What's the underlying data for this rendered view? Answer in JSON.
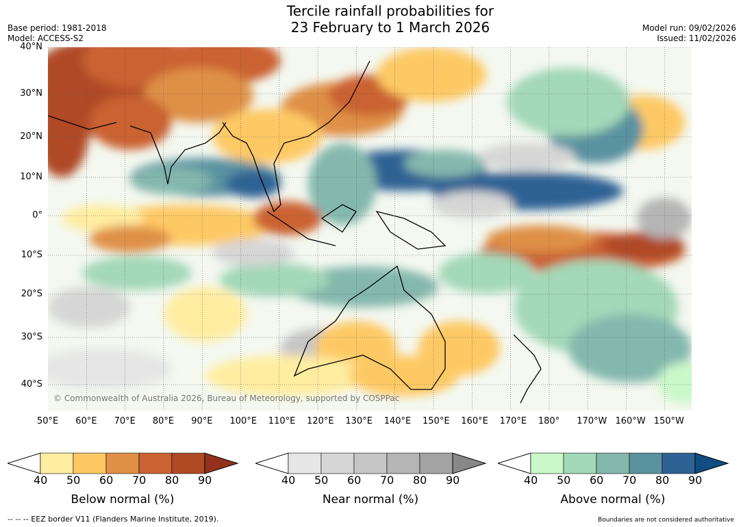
{
  "header": {
    "title_line1": "Tercile rainfall probabilities for",
    "title_line2": "23 February to 1 March 2026",
    "base_period": "Base period: 1981-2018",
    "model": "Model: ACCESS-S2",
    "model_run": "Model run: 09/02/2026",
    "issued": "Issued: 11/02/2026"
  },
  "map": {
    "lat_labels": [
      "40°N",
      "30°N",
      "20°N",
      "10°N",
      "0°",
      "10°S",
      "20°S",
      "30°S",
      "40°S"
    ],
    "lon_labels": [
      "50°E",
      "60°E",
      "70°E",
      "80°E",
      "90°E",
      "100°E",
      "110°E",
      "120°E",
      "130°E",
      "140°E",
      "150°E",
      "160°E",
      "170°E",
      "180°",
      "170°W",
      "160°W",
      "150°W"
    ],
    "copyright": "© Commonwealth of Australia 2026, Bureau of Meteorology, supported by COSPPac"
  },
  "colorbars": [
    {
      "label": "Below normal (%)",
      "ticks": [
        "40",
        "50",
        "60",
        "70",
        "80",
        "90"
      ],
      "colors": [
        "#ffeda0",
        "#fec965",
        "#df9046",
        "#cb6231",
        "#b04a25",
        "#93321c"
      ]
    },
    {
      "label": "Near normal (%)",
      "ticks": [
        "40",
        "50",
        "60",
        "70",
        "80",
        "90"
      ],
      "colors": [
        "#e6e6e6",
        "#d6d6d6",
        "#c6c6c6",
        "#b5b5b5",
        "#a3a3a3",
        "#888888"
      ]
    },
    {
      "label": "Above normal (%)",
      "ticks": [
        "40",
        "50",
        "60",
        "70",
        "80",
        "90"
      ],
      "colors": [
        "#c9f8c9",
        "#a3d8b8",
        "#84b8ad",
        "#5a92a0",
        "#2f6294",
        "#124d82"
      ]
    }
  ],
  "footer": {
    "eez": "--  --  -- EEZ border V11 (Flanders Marine Institute, 2019).",
    "disclaimer": "Boundaries are not considered authoritative"
  }
}
